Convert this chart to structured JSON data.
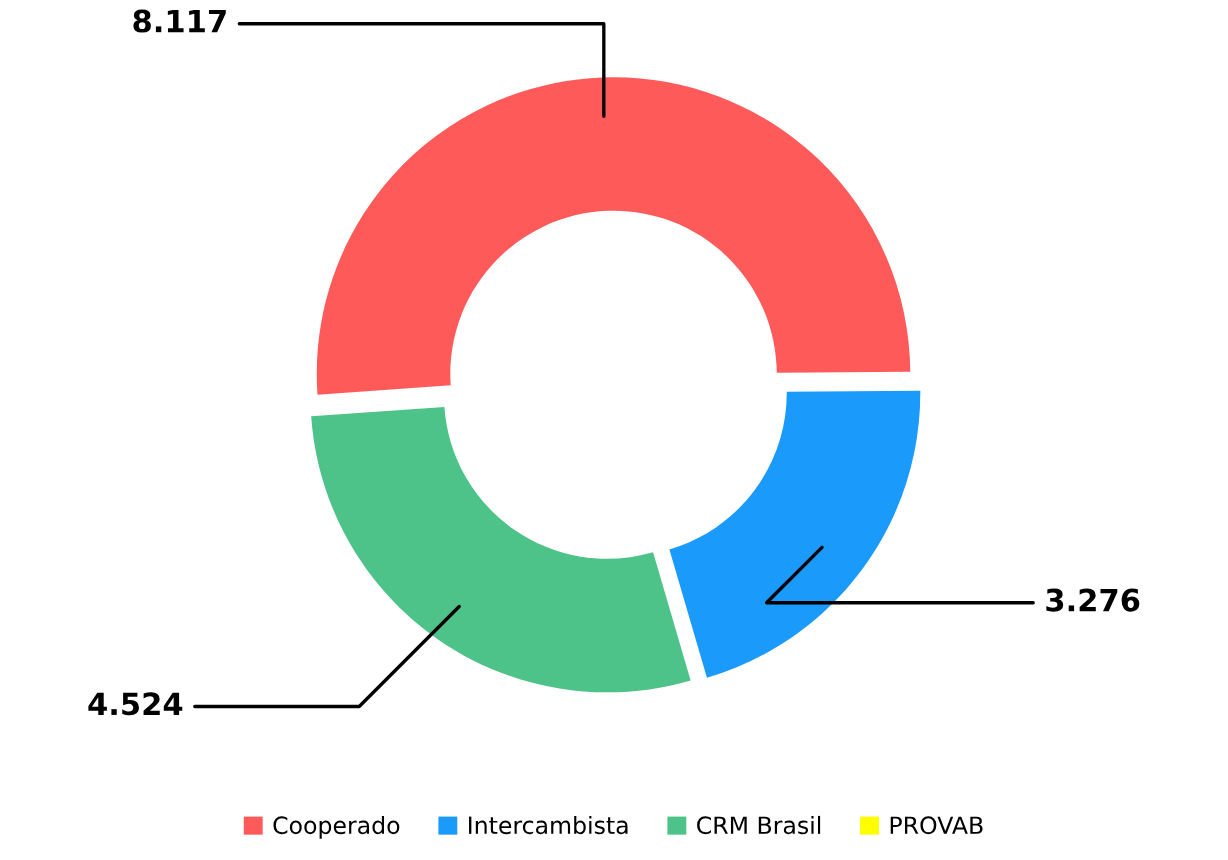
{
  "chart_data": {
    "type": "donut",
    "categories": [
      "Cooperado",
      "Intercambista",
      "CRM Brasil",
      "PROVAB"
    ],
    "values": [
      8117,
      3276,
      4524,
      0
    ],
    "value_labels": [
      "8.117",
      "3.276",
      "4.524",
      null
    ],
    "colors": [
      "#ff5a5a",
      "#1a9bfc",
      "#4dc38a",
      "#ffff00"
    ],
    "legend": "bottom"
  }
}
